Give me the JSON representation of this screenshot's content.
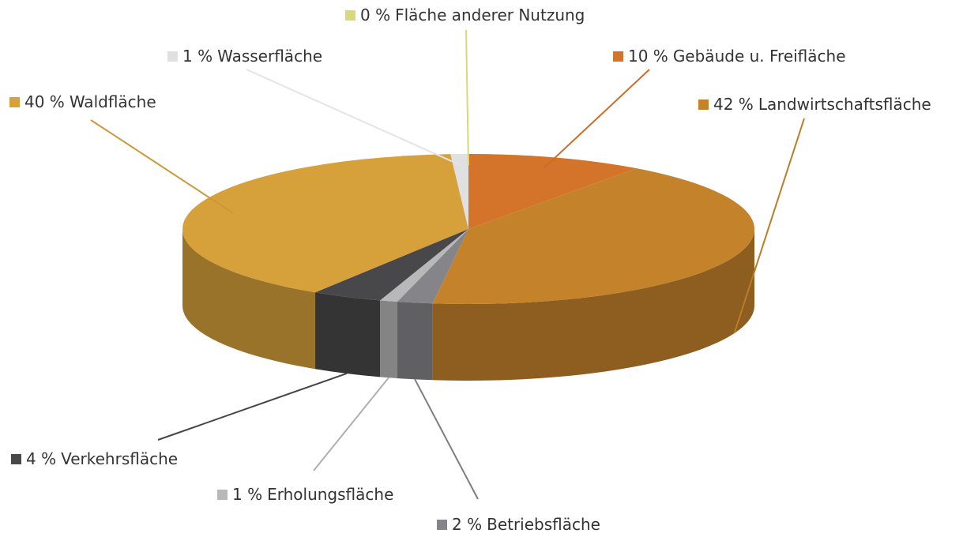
{
  "chart_data": {
    "type": "pie3d",
    "categories": [
      "Fläche anderer Nutzung",
      "Gebäude u. Freifläche",
      "Landwirtschaftsfläche",
      "Betriebsfläche",
      "Erholungsfläche",
      "Verkehrsfläche",
      "Waldfläche",
      "Wasserfläche"
    ],
    "values": [
      0,
      10,
      42,
      2,
      1,
      4,
      40,
      1
    ],
    "value_labels": [
      "0 %",
      "10 %",
      "42 %",
      "2 %",
      "1 %",
      "4 %",
      "40 %",
      "1 %"
    ],
    "colors": [
      "#d9d97a",
      "#d4732a",
      "#c4832b",
      "#858589",
      "#b8b8b8",
      "#48484a",
      "#d6a03b",
      "#e0e0e0"
    ]
  }
}
